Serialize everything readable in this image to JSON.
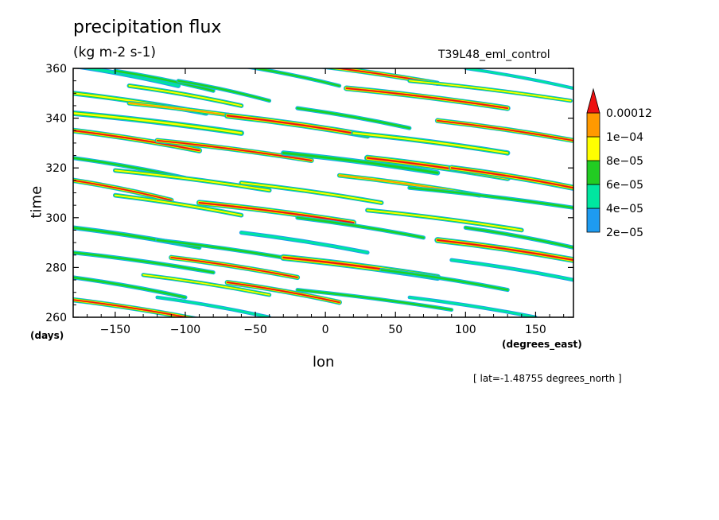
{
  "chart_data": {
    "type": "heatmap",
    "title": "precipitation flux",
    "units": "(kg m-2 s-1)",
    "run_label": "T39L48_eml_control",
    "xlabel": "lon",
    "ylabel": "time",
    "x_units": "(degrees_east)",
    "y_units": "(days)",
    "xlim": [
      -180,
      177
    ],
    "ylim": [
      260,
      360
    ],
    "x_ticks": [
      -150,
      -100,
      -50,
      0,
      50,
      100,
      150
    ],
    "y_ticks": [
      260,
      280,
      300,
      320,
      340,
      360
    ],
    "footnote": "[ lat=-1.48755 degrees_north ]",
    "colorbar": {
      "levels": [
        "2e-05",
        "4e-05",
        "6e-05",
        "8e-05",
        "1e-04",
        "0.00012"
      ],
      "colors": [
        "#1e9bf0",
        "#00e6a0",
        "#22cc22",
        "#ffff00",
        "#ff9900",
        "#ee1111"
      ]
    },
    "bands": [
      {
        "x0": -180,
        "x1": -105,
        "t": 357,
        "w": 1.8,
        "c": 2
      },
      {
        "x0": -150,
        "x1": -80,
        "t": 355,
        "w": 1.6,
        "c": 3
      },
      {
        "x0": -140,
        "x1": -60,
        "t": 349,
        "w": 1.8,
        "c": 4
      },
      {
        "x0": -105,
        "x1": -40,
        "t": 351,
        "w": 1.5,
        "c": 3
      },
      {
        "x0": -180,
        "x1": -85,
        "t": 346,
        "w": 2.0,
        "c": 4
      },
      {
        "x0": -60,
        "x1": 10,
        "t": 357,
        "w": 1.5,
        "c": 3
      },
      {
        "x0": -20,
        "x1": 80,
        "t": 358,
        "w": 2.0,
        "c": 6
      },
      {
        "x0": 15,
        "x1": 130,
        "t": 348,
        "w": 2.2,
        "c": 6
      },
      {
        "x0": 60,
        "x1": 175,
        "t": 351,
        "w": 1.6,
        "c": 4
      },
      {
        "x0": 100,
        "x1": 177,
        "t": 356,
        "w": 1.3,
        "c": 2
      },
      {
        "x0": -180,
        "x1": -60,
        "t": 338,
        "w": 2.2,
        "c": 4
      },
      {
        "x0": -140,
        "x1": -30,
        "t": 342,
        "w": 1.8,
        "c": 5
      },
      {
        "x0": -70,
        "x1": 30,
        "t": 337,
        "w": 2.4,
        "c": 6
      },
      {
        "x0": -20,
        "x1": 60,
        "t": 340,
        "w": 1.6,
        "c": 3
      },
      {
        "x0": 80,
        "x1": 177,
        "t": 335,
        "w": 2.0,
        "c": 6
      },
      {
        "x0": 20,
        "x1": 130,
        "t": 330,
        "w": 2.0,
        "c": 4
      },
      {
        "x0": -180,
        "x1": -90,
        "t": 331,
        "w": 2.2,
        "c": 6
      },
      {
        "x0": -120,
        "x1": -10,
        "t": 327,
        "w": 2.0,
        "c": 6
      },
      {
        "x0": -30,
        "x1": 80,
        "t": 322,
        "w": 2.0,
        "c": 3
      },
      {
        "x0": 30,
        "x1": 130,
        "t": 320,
        "w": 2.5,
        "c": 6
      },
      {
        "x0": 90,
        "x1": 177,
        "t": 316,
        "w": 2.3,
        "c": 6
      },
      {
        "x0": -180,
        "x1": -100,
        "t": 320,
        "w": 1.6,
        "c": 3
      },
      {
        "x0": -150,
        "x1": -40,
        "t": 315,
        "w": 1.8,
        "c": 4
      },
      {
        "x0": -60,
        "x1": 40,
        "t": 310,
        "w": 1.8,
        "c": 4
      },
      {
        "x0": 10,
        "x1": 110,
        "t": 313,
        "w": 1.8,
        "c": 5
      },
      {
        "x0": 60,
        "x1": 177,
        "t": 308,
        "w": 1.6,
        "c": 3
      },
      {
        "x0": -180,
        "x1": -110,
        "t": 311,
        "w": 2.0,
        "c": 6
      },
      {
        "x0": -150,
        "x1": -60,
        "t": 305,
        "w": 1.8,
        "c": 4
      },
      {
        "x0": -90,
        "x1": 20,
        "t": 302,
        "w": 2.3,
        "c": 6
      },
      {
        "x0": -20,
        "x1": 70,
        "t": 296,
        "w": 1.6,
        "c": 3
      },
      {
        "x0": 30,
        "x1": 140,
        "t": 299,
        "w": 1.8,
        "c": 4
      },
      {
        "x0": 100,
        "x1": 177,
        "t": 292,
        "w": 1.6,
        "c": 3
      },
      {
        "x0": 80,
        "x1": 177,
        "t": 287,
        "w": 2.4,
        "c": 6
      },
      {
        "x0": -180,
        "x1": -90,
        "t": 292,
        "w": 1.8,
        "c": 3
      },
      {
        "x0": -120,
        "x1": -20,
        "t": 287,
        "w": 1.6,
        "c": 3
      },
      {
        "x0": -60,
        "x1": 30,
        "t": 290,
        "w": 1.6,
        "c": 2
      },
      {
        "x0": -180,
        "x1": -80,
        "t": 282,
        "w": 1.6,
        "c": 3
      },
      {
        "x0": -110,
        "x1": -20,
        "t": 280,
        "w": 2.0,
        "c": 6
      },
      {
        "x0": -30,
        "x1": 80,
        "t": 280,
        "w": 2.6,
        "c": 6
      },
      {
        "x0": 40,
        "x1": 130,
        "t": 275,
        "w": 1.6,
        "c": 3
      },
      {
        "x0": 90,
        "x1": 177,
        "t": 279,
        "w": 1.5,
        "c": 2
      },
      {
        "x0": -180,
        "x1": -100,
        "t": 272,
        "w": 1.6,
        "c": 3
      },
      {
        "x0": -130,
        "x1": -40,
        "t": 273,
        "w": 1.6,
        "c": 4
      },
      {
        "x0": -70,
        "x1": 10,
        "t": 270,
        "w": 2.0,
        "c": 6
      },
      {
        "x0": -20,
        "x1": 90,
        "t": 267,
        "w": 1.5,
        "c": 3
      },
      {
        "x0": -180,
        "x1": -90,
        "t": 263,
        "w": 2.0,
        "c": 6
      },
      {
        "x0": -120,
        "x1": -40,
        "t": 264,
        "w": 1.4,
        "c": 2
      },
      {
        "x0": 60,
        "x1": 150,
        "t": 264,
        "w": 1.4,
        "c": 2
      }
    ]
  }
}
